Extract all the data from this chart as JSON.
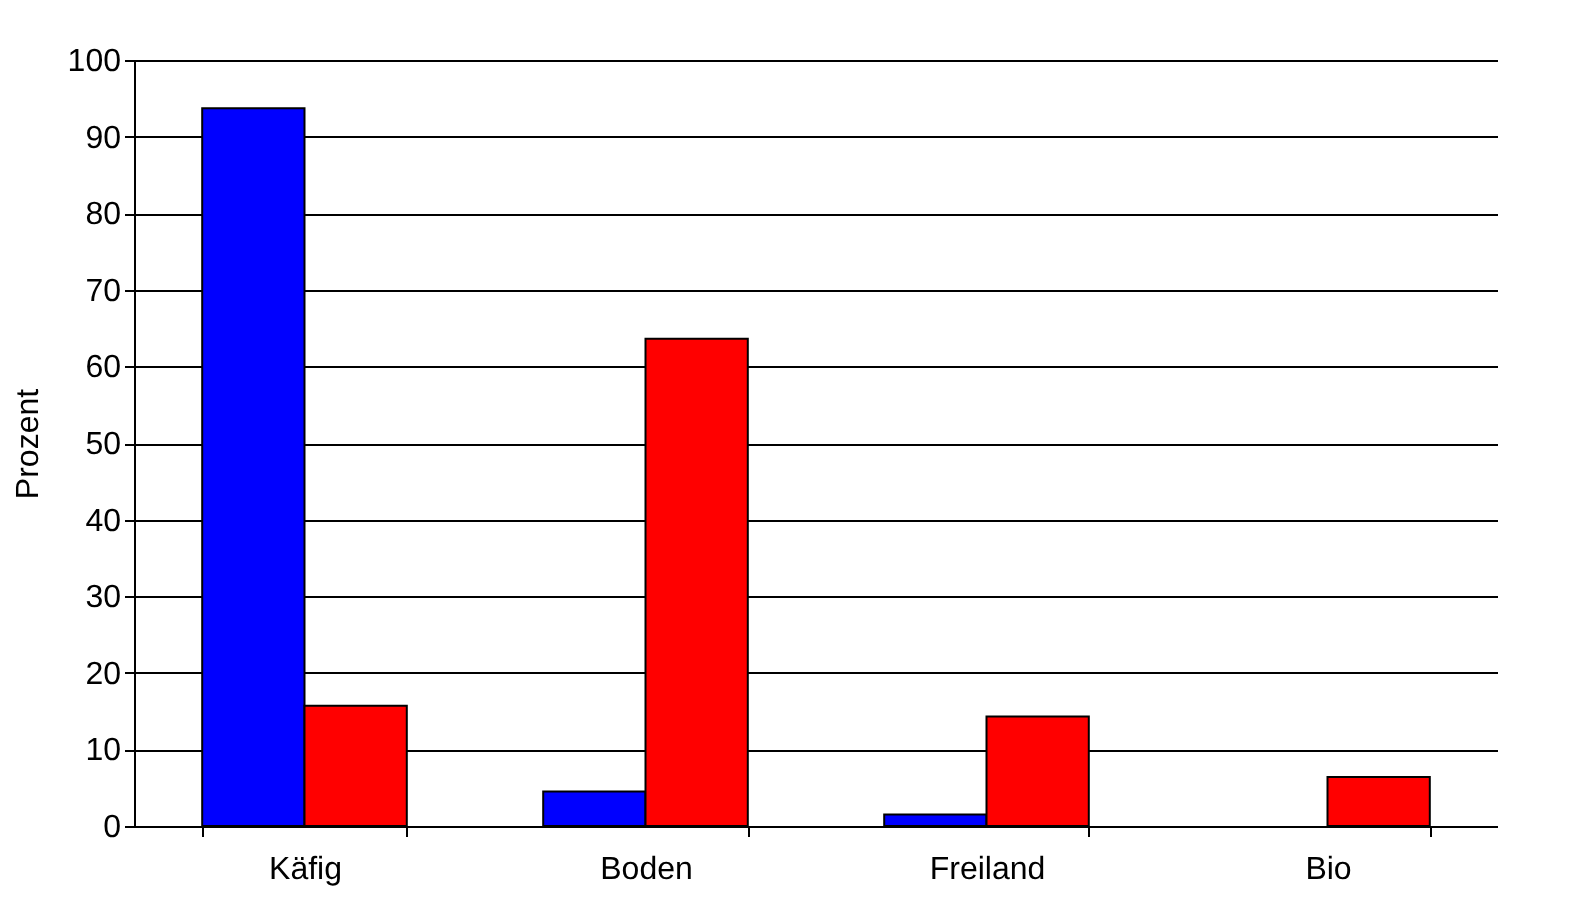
{
  "chart_data": {
    "type": "bar",
    "ylabel": "Prozent",
    "categories": [
      "Käfig",
      "Boden",
      "Freiland",
      "Bio"
    ],
    "series": [
      {
        "color": "#0000ff",
        "values": [
          93.7,
          4.5,
          1.5,
          0
        ]
      },
      {
        "color": "#ff0000",
        "values": [
          15.7,
          63.6,
          14.3,
          6.4
        ]
      }
    ],
    "ylim": [
      0,
      100
    ],
    "yticks": [
      0,
      10,
      20,
      30,
      40,
      50,
      60,
      70,
      80,
      90,
      100
    ],
    "grid": "y",
    "legend": false
  }
}
